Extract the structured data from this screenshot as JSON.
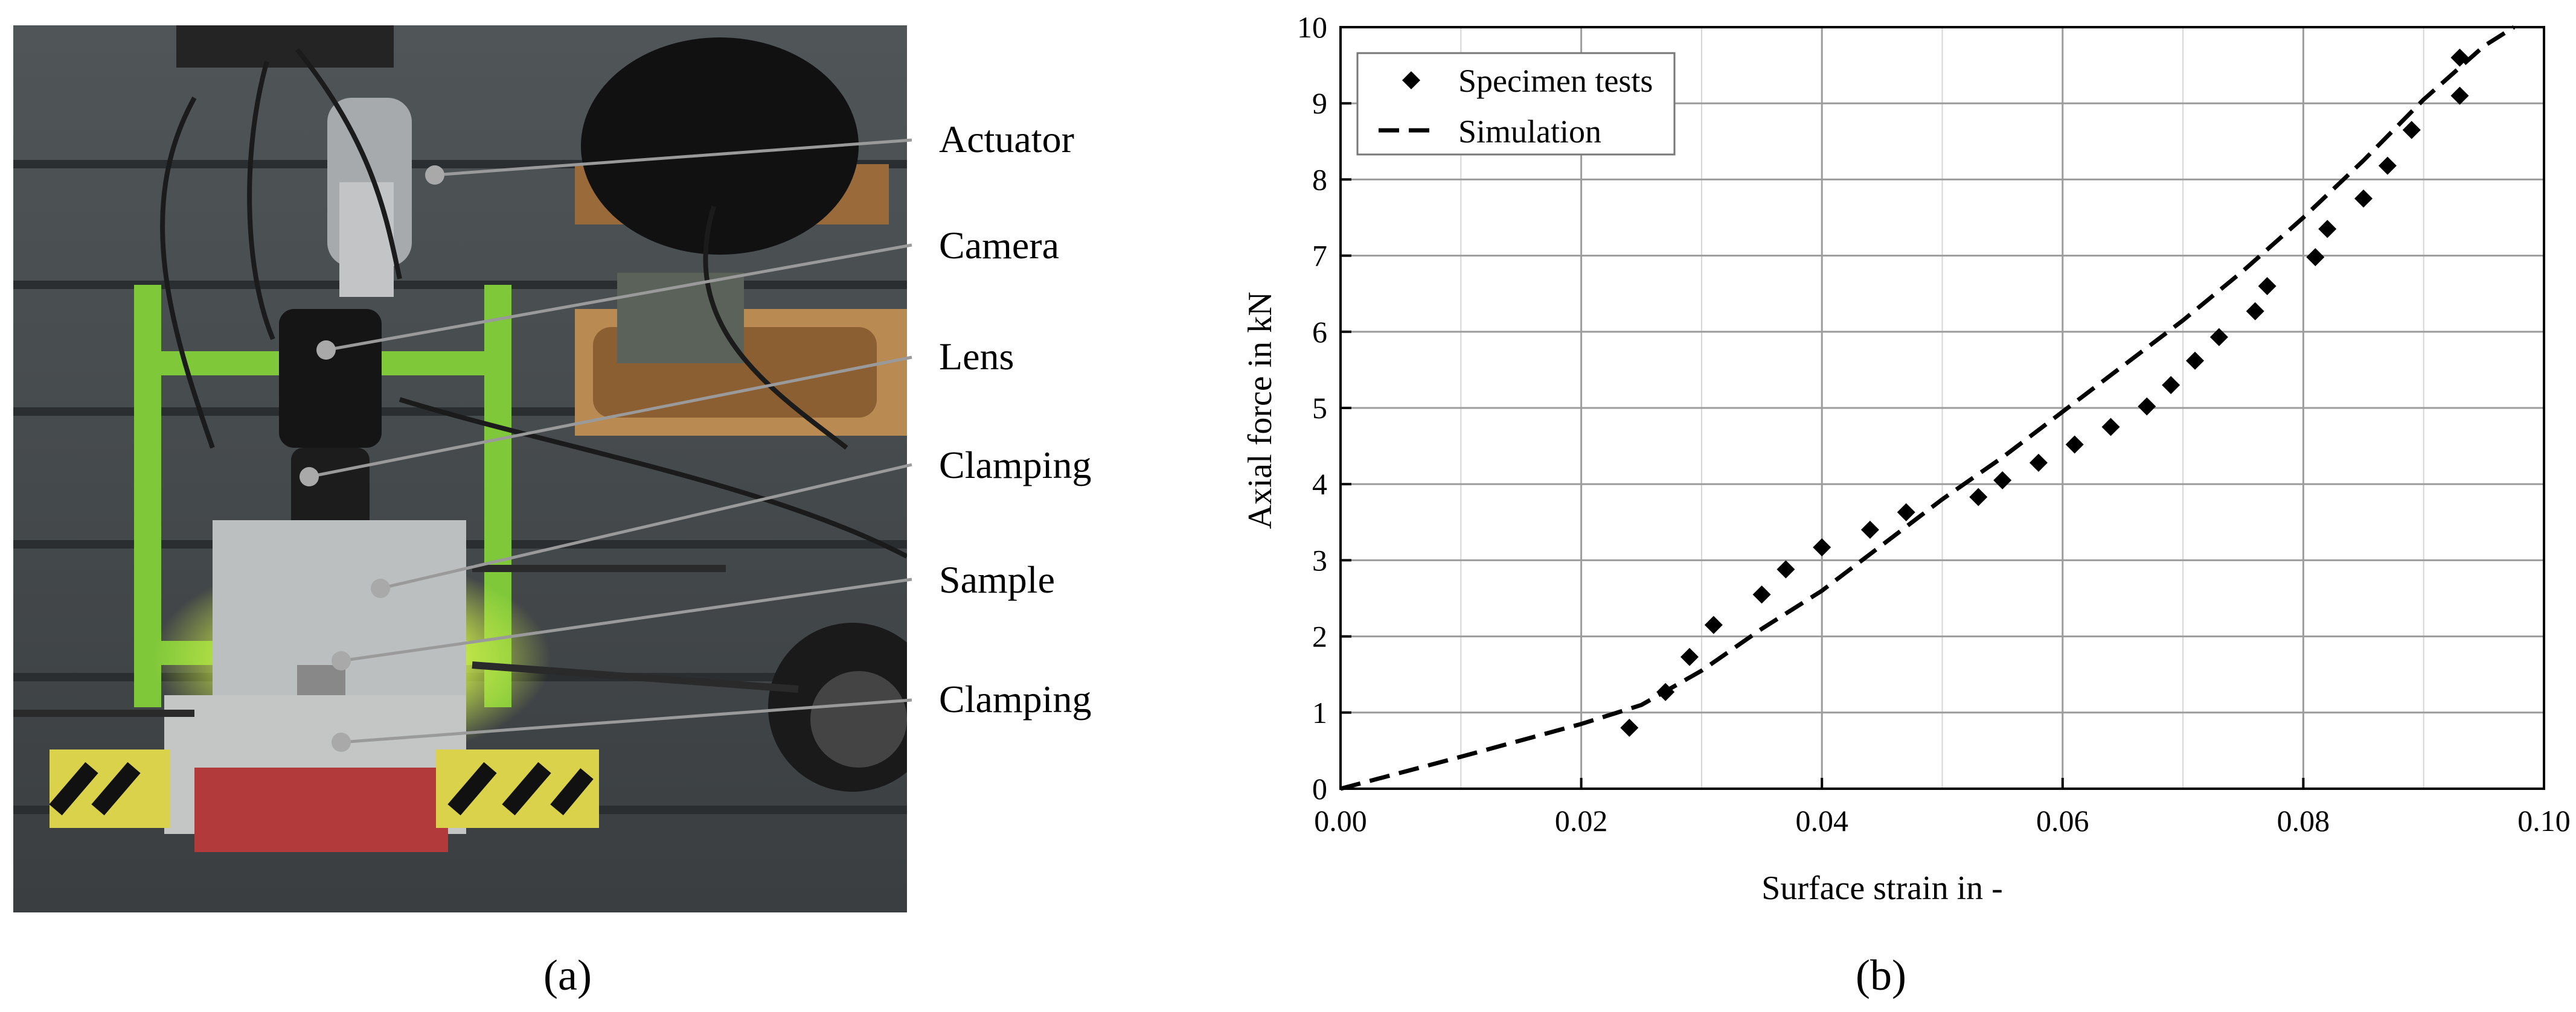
{
  "panel_a": {
    "caption": "(a)",
    "callouts": [
      "Actuator",
      "Camera",
      "Lens",
      "Clamping",
      "Sample",
      "Clamping"
    ]
  },
  "panel_b": {
    "caption": "(b)"
  },
  "chart_data": {
    "type": "scatter",
    "title": "",
    "xlabel": "Surface strain in -",
    "ylabel": "Axial force in kN",
    "xlim": [
      0.0,
      0.1
    ],
    "ylim": [
      0,
      10
    ],
    "xticks": [
      "0.00",
      "0.02",
      "0.04",
      "0.06",
      "0.08",
      "0.10"
    ],
    "yticks": [
      "0",
      "1",
      "2",
      "3",
      "4",
      "5",
      "6",
      "7",
      "8",
      "9",
      "10"
    ],
    "grid": true,
    "legend_position": "top-left",
    "series": [
      {
        "name": "Specimen tests",
        "kind": "markers",
        "marker": "diamond",
        "color": "#000000",
        "points": [
          [
            0.024,
            0.8
          ],
          [
            0.027,
            1.27
          ],
          [
            0.029,
            1.73
          ],
          [
            0.031,
            2.15
          ],
          [
            0.035,
            2.55
          ],
          [
            0.037,
            2.88
          ],
          [
            0.04,
            3.17
          ],
          [
            0.044,
            3.4
          ],
          [
            0.047,
            3.63
          ],
          [
            0.053,
            3.83
          ],
          [
            0.055,
            4.05
          ],
          [
            0.058,
            4.28
          ],
          [
            0.061,
            4.52
          ],
          [
            0.064,
            4.75
          ],
          [
            0.067,
            5.02
          ],
          [
            0.069,
            5.3
          ],
          [
            0.071,
            5.62
          ],
          [
            0.073,
            5.93
          ],
          [
            0.076,
            6.27
          ],
          [
            0.077,
            6.6
          ],
          [
            0.081,
            6.98
          ],
          [
            0.082,
            7.35
          ],
          [
            0.085,
            7.75
          ],
          [
            0.087,
            8.18
          ],
          [
            0.089,
            8.65
          ],
          [
            0.093,
            9.1
          ],
          [
            0.093,
            9.6
          ]
        ]
      },
      {
        "name": "Simulation",
        "kind": "line",
        "dash": true,
        "color": "#000000",
        "points": [
          [
            0.0,
            0.0
          ],
          [
            0.01,
            0.42
          ],
          [
            0.02,
            0.85
          ],
          [
            0.025,
            1.1
          ],
          [
            0.03,
            1.55
          ],
          [
            0.035,
            2.1
          ],
          [
            0.04,
            2.6
          ],
          [
            0.045,
            3.2
          ],
          [
            0.05,
            3.8
          ],
          [
            0.055,
            4.35
          ],
          [
            0.06,
            4.95
          ],
          [
            0.065,
            5.55
          ],
          [
            0.07,
            6.15
          ],
          [
            0.075,
            6.8
          ],
          [
            0.08,
            7.5
          ],
          [
            0.085,
            8.25
          ],
          [
            0.09,
            9.05
          ],
          [
            0.095,
            9.75
          ],
          [
            0.0975,
            10.0
          ]
        ]
      }
    ]
  }
}
